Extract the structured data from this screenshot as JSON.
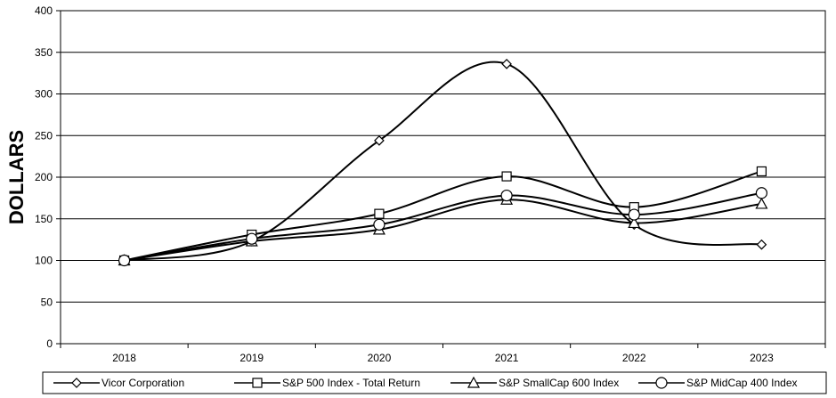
{
  "chart_data": {
    "type": "line",
    "title": "",
    "xlabel": "",
    "ylabel": "DOLLARS",
    "ylim": [
      0,
      400
    ],
    "yticks": [
      0,
      50,
      100,
      150,
      200,
      250,
      300,
      350,
      400
    ],
    "categories": [
      "2018",
      "2019",
      "2020",
      "2021",
      "2022",
      "2023"
    ],
    "grid": "horizontal",
    "legend_position": "bottom",
    "series": [
      {
        "name": "Vicor Corporation",
        "marker": "diamond",
        "values": [
          100,
          123,
          244,
          336,
          143,
          119
        ]
      },
      {
        "name": "S&P 500 Index - Total Return",
        "marker": "square",
        "values": [
          100,
          131,
          156,
          201,
          164,
          207
        ]
      },
      {
        "name": "S&P SmallCap 600 Index",
        "marker": "triangle",
        "values": [
          100,
          123,
          137,
          173,
          145,
          168
        ]
      },
      {
        "name": "S&P MidCap 400 Index",
        "marker": "circle",
        "values": [
          100,
          126,
          143,
          178,
          155,
          181
        ]
      }
    ]
  }
}
